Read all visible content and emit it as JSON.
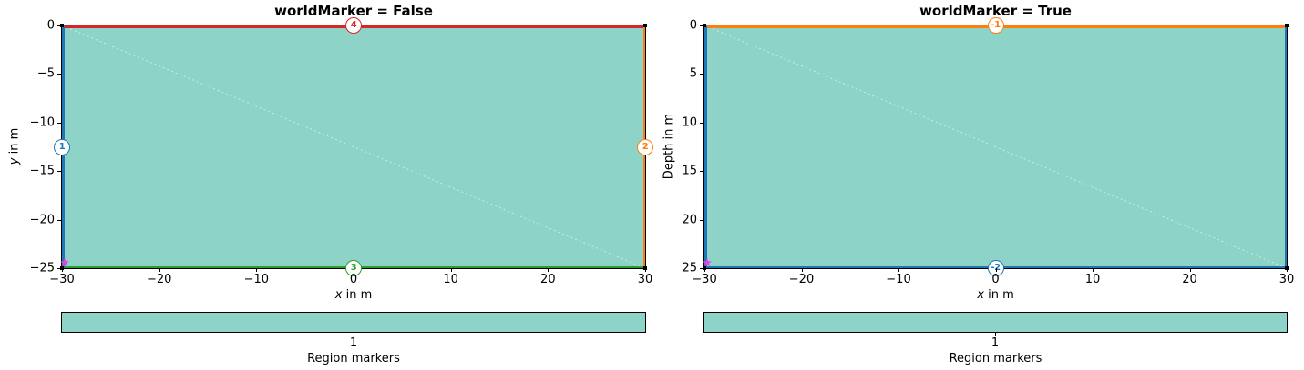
{
  "figure": {
    "background": "#ffffff",
    "region_fill": "#8dd3c7",
    "region_marker_color": "#e83ee8",
    "node_color": "#000000",
    "mesh_edge_color": "rgba(255,255,255,0.55)"
  },
  "chart_data": [
    {
      "type": "area",
      "title": "worldMarker = False",
      "xlabel": "x in m",
      "ylabel": "y in m",
      "xlabel_italic": "x",
      "xlabel_rest": " in m",
      "ylabel_italic": "y",
      "ylabel_rest": " in m",
      "xlim": [
        -30,
        30
      ],
      "ylim_top": 0,
      "ylim_bottom": -25,
      "grid": false,
      "legend": "none",
      "xticks": {
        "values": [
          -30,
          -20,
          -10,
          0,
          10,
          20,
          30
        ],
        "labels": [
          "−30",
          "−20",
          "−10",
          "0",
          "10",
          "20",
          "30"
        ]
      },
      "yticks": {
        "values": [
          0,
          -5,
          -10,
          -15,
          -20,
          -25
        ],
        "labels": [
          "0",
          "−5",
          "−10",
          "−15",
          "−20",
          "−25"
        ]
      },
      "region": {
        "marker": 1,
        "fill": "#8dd3c7",
        "polygon": [
          [
            -30,
            0
          ],
          [
            30,
            0
          ],
          [
            30,
            -25
          ],
          [
            -30,
            -25
          ]
        ]
      },
      "edges": {
        "top": {
          "marker": 4,
          "color": "#d62728"
        },
        "bottom": {
          "marker": 3,
          "color": "#2ca02c"
        },
        "left": {
          "marker": 1,
          "color": "#1f77b4"
        },
        "right": {
          "marker": 2,
          "color": "#ff7f0e"
        }
      },
      "boundary_markers": [
        {
          "label": "1",
          "x": -30,
          "y": -12.5,
          "color": "#1f77b4"
        },
        {
          "label": "2",
          "x": 30,
          "y": -12.5,
          "color": "#ff7f0e"
        },
        {
          "label": "3",
          "x": 0,
          "y": -25,
          "color": "#2ca02c"
        },
        {
          "label": "4",
          "x": 0,
          "y": 0,
          "color": "#d62728"
        }
      ],
      "region_marker_pos": {
        "x": -29.7,
        "y": -24.4
      },
      "colorbar": {
        "tick": "1",
        "label": "Region markers",
        "color": "#8dd3c7"
      }
    },
    {
      "type": "area",
      "title": "worldMarker = True",
      "xlabel": "x in m",
      "ylabel": "Depth in m",
      "xlabel_italic": "x",
      "xlabel_rest": " in m",
      "ylabel_italic": "",
      "ylabel_rest": "Depth in m",
      "xlim": [
        -30,
        30
      ],
      "ylim_top": 0,
      "ylim_bottom": 25,
      "grid": false,
      "legend": "none",
      "xticks": {
        "values": [
          -30,
          -20,
          -10,
          0,
          10,
          20,
          30
        ],
        "labels": [
          "−30",
          "−20",
          "−10",
          "0",
          "10",
          "20",
          "30"
        ]
      },
      "yticks": {
        "values": [
          0,
          5,
          10,
          15,
          20,
          25
        ],
        "labels": [
          "0",
          "5",
          "10",
          "15",
          "20",
          "25"
        ]
      },
      "region": {
        "marker": 1,
        "fill": "#8dd3c7",
        "polygon": [
          [
            -30,
            0
          ],
          [
            30,
            0
          ],
          [
            30,
            25
          ],
          [
            -30,
            25
          ]
        ]
      },
      "edges": {
        "top": {
          "marker": -1,
          "color": "#ff7f0e"
        },
        "bottom": {
          "marker": -2,
          "color": "#1f77b4"
        },
        "left": {
          "marker": -2,
          "color": "#1f77b4"
        },
        "right": {
          "marker": -2,
          "color": "#1f77b4"
        }
      },
      "boundary_markers": [
        {
          "label": "-1",
          "x": 0,
          "y": 0,
          "color": "#ff7f0e"
        },
        {
          "label": "-2",
          "x": 0,
          "y": 25,
          "color": "#1f77b4"
        }
      ],
      "region_marker_pos": {
        "x": -29.7,
        "y": 24.4
      },
      "colorbar": {
        "tick": "1",
        "label": "Region markers",
        "color": "#8dd3c7"
      }
    }
  ]
}
